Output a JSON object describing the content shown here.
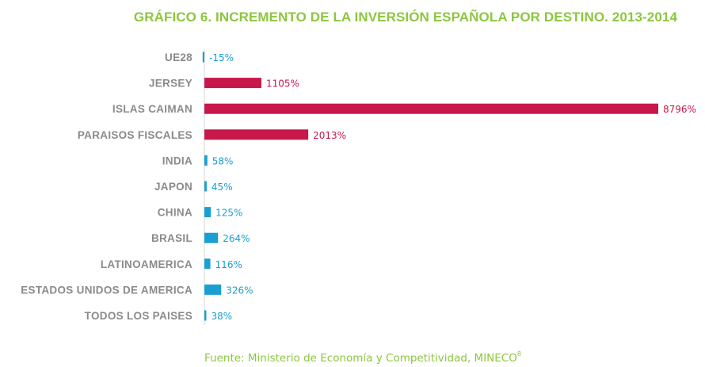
{
  "title": "GRÁFICO 6.  INCREMENTO DE LA INVERSIÓN ESPAÑOLA POR DESTINO. 2013-2014",
  "source": {
    "text": "Fuente: Ministerio de Economía y Competitividad, MINECO",
    "footnote": "8"
  },
  "colors": {
    "title": "#8cc63e",
    "highlight_bar": "#c8174a",
    "normal_bar": "#1a9fd1",
    "category_label": "#8a8a8a"
  },
  "chart_data": {
    "type": "bar",
    "orientation": "horizontal",
    "title": "GRÁFICO 6.  INCREMENTO DE LA INVERSIÓN ESPAÑOLA POR DESTINO. 2013-2014",
    "xlabel": "",
    "ylabel": "",
    "grid": false,
    "xlim": [
      -15,
      8796
    ],
    "categories": [
      "UE28",
      "JERSEY",
      "ISLAS CAIMAN",
      "PARAISOS FISCALES",
      "INDIA",
      "JAPON",
      "CHINA",
      "BRASIL",
      "LATINOAMERICA",
      "ESTADOS UNIDOS DE AMERICA",
      "TODOS LOS PAISES"
    ],
    "values": [
      -15,
      1105,
      8796,
      2013,
      58,
      45,
      125,
      264,
      116,
      326,
      38
    ],
    "labels": [
      "-15%",
      "1105%",
      "8796%",
      "2013%",
      "58%",
      "45%",
      "125%",
      "264%",
      "116%",
      "326%",
      "38%"
    ],
    "highlighted": [
      false,
      true,
      true,
      true,
      false,
      false,
      false,
      false,
      false,
      false,
      false
    ]
  }
}
